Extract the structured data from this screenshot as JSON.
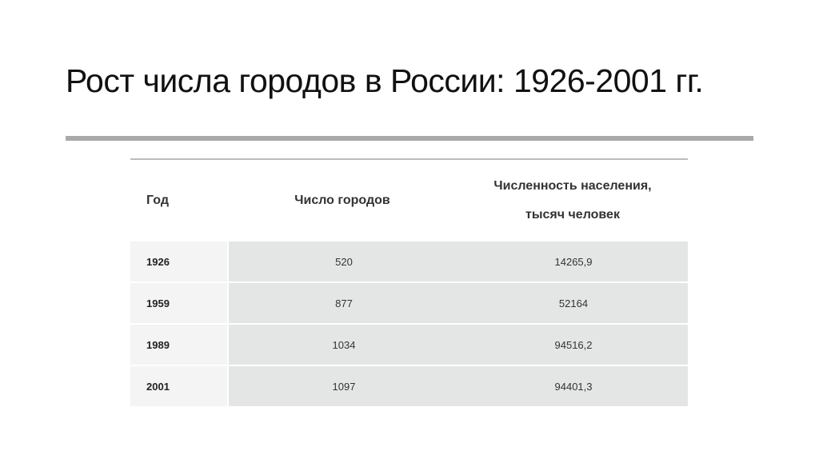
{
  "slide": {
    "title": "Рост числа городов в России: 1926-2001 гг."
  },
  "table": {
    "headers": {
      "year": "Год",
      "cities": "Число городов",
      "population_line1": "Численность населения,",
      "population_line2": "тысяч человек"
    },
    "rows": [
      {
        "year": "1926",
        "cities": "520",
        "population": "14265,9"
      },
      {
        "year": "1959",
        "cities": "877",
        "population": "52164"
      },
      {
        "year": "1989",
        "cities": "1034",
        "population": "94516,2"
      },
      {
        "year": "2001",
        "cities": "1097",
        "population": "94401,3"
      }
    ]
  }
}
